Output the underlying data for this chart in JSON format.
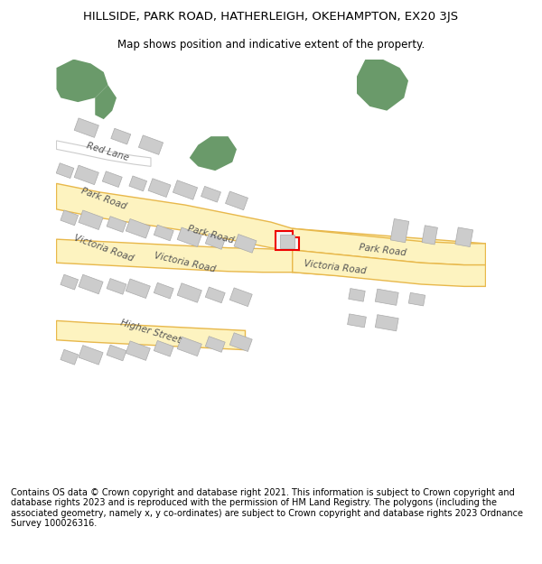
{
  "title_line1": "HILLSIDE, PARK ROAD, HATHERLEIGH, OKEHAMPTON, EX20 3JS",
  "title_line2": "Map shows position and indicative extent of the property.",
  "footer_text": "Contains OS data © Crown copyright and database right 2021. This information is subject to Crown copyright and database rights 2023 and is reproduced with the permission of HM Land Registry. The polygons (including the associated geometry, namely x, y co-ordinates) are subject to Crown copyright and database rights 2023 Ordnance Survey 100026316.",
  "bg_color": "#ffffff",
  "map_bg": "#f5f5f5",
  "road_fill": "#fdf3c0",
  "road_edge": "#e8b84b",
  "building_color": "#cccccc",
  "building_edge": "#aaaaaa",
  "green_color": "#6a9a6a",
  "red_outline_color": "#ee0000",
  "white_road_fill": "#ffffff",
  "white_road_edge": "#cccccc",
  "label_color": "#555555",
  "title_color": "#000000",
  "footer_color": "#000000"
}
